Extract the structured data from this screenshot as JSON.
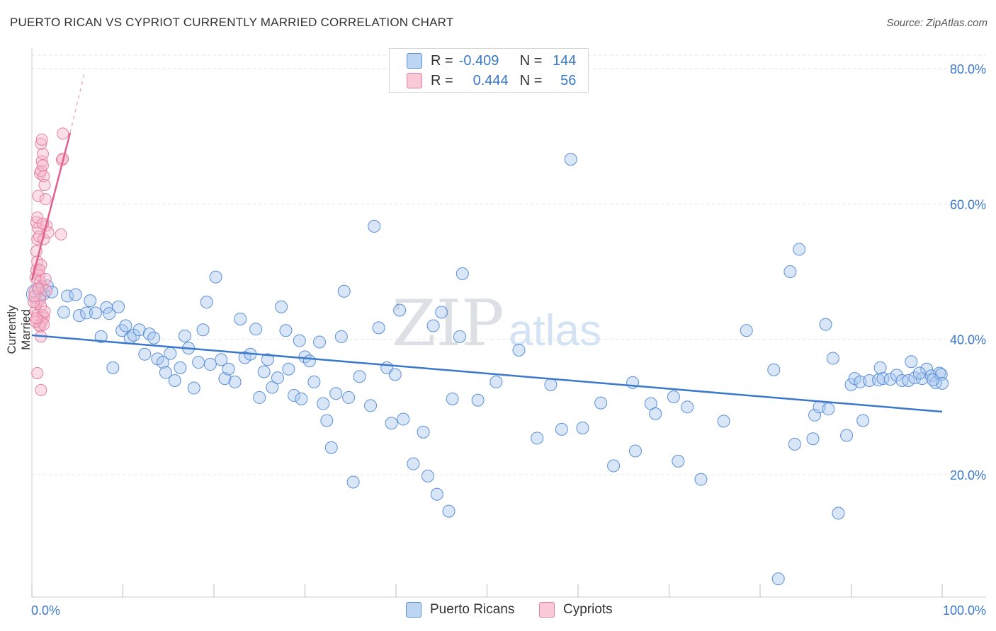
{
  "header": {
    "title": "PUERTO RICAN VS CYPRIOT CURRENTLY MARRIED CORRELATION CHART",
    "source": "Source: ZipAtlas.com"
  },
  "watermark": {
    "zip": "ZIP",
    "atlas": "atlas"
  },
  "legend": {
    "rows": [
      {
        "r_label": "R =",
        "r_value": "-0.409",
        "n_label": "N =",
        "n_value": "144",
        "color": "#a8c8f0",
        "border": "#5b8fd6"
      },
      {
        "r_label": "R =",
        "r_value": "0.444",
        "n_label": "N =",
        "n_value": "56",
        "color": "#f7b9cc",
        "border": "#e57fa0"
      }
    ]
  },
  "bottom_legend": [
    {
      "label": "Puerto Ricans",
      "color": "#a8c8f0",
      "border": "#5b8fd6"
    },
    {
      "label": "Cypriots",
      "color": "#f7b9cc",
      "border": "#e57fa0"
    }
  ],
  "chart_data": {
    "type": "scatter",
    "title": "PUERTO RICAN VS CYPRIOT CURRENTLY MARRIED CORRELATION CHART",
    "xlabel": "",
    "ylabel": "Currently Married",
    "xlim": [
      0,
      100
    ],
    "ylim": [
      0,
      85
    ],
    "x_tick_labels": [
      "0.0%",
      "100.0%"
    ],
    "y_ticks": [
      20,
      40,
      60,
      80
    ],
    "y_tick_labels": [
      "20.0%",
      "40.0%",
      "60.0%",
      "80.0%"
    ],
    "grid": true,
    "colors": {
      "blue": "#3a78c9",
      "pink": "#e0608a",
      "blue_fill": "#a8c8f0",
      "pink_fill": "#f7b9cc"
    },
    "series": [
      {
        "name": "Puerto Ricans",
        "trend": {
          "x": [
            0,
            100
          ],
          "y": [
            40.6,
            29.3
          ]
        },
        "points": [
          [
            0.8,
            47.2
          ],
          [
            1.3,
            46.7
          ],
          [
            1.7,
            47.9
          ],
          [
            2.2,
            47.0
          ],
          [
            3.5,
            44.0
          ],
          [
            3.9,
            46.4
          ],
          [
            4.8,
            46.6
          ],
          [
            5.2,
            43.5
          ],
          [
            6.0,
            43.9
          ],
          [
            6.4,
            45.7
          ],
          [
            7.0,
            43.9
          ],
          [
            7.6,
            40.4
          ],
          [
            8.2,
            44.7
          ],
          [
            8.5,
            43.8
          ],
          [
            8.9,
            35.8
          ],
          [
            9.5,
            44.8
          ],
          [
            9.9,
            41.3
          ],
          [
            10.3,
            42.0
          ],
          [
            10.8,
            40.2
          ],
          [
            11.2,
            40.6
          ],
          [
            11.8,
            41.4
          ],
          [
            12.4,
            37.8
          ],
          [
            12.9,
            40.8
          ],
          [
            13.4,
            40.2
          ],
          [
            13.8,
            37.1
          ],
          [
            14.4,
            36.6
          ],
          [
            14.7,
            35.1
          ],
          [
            15.2,
            37.9
          ],
          [
            15.7,
            33.9
          ],
          [
            16.3,
            35.8
          ],
          [
            16.8,
            40.5
          ],
          [
            17.2,
            38.7
          ],
          [
            17.8,
            32.8
          ],
          [
            18.3,
            36.6
          ],
          [
            18.8,
            41.4
          ],
          [
            19.2,
            45.5
          ],
          [
            19.6,
            36.3
          ],
          [
            20.2,
            49.2
          ],
          [
            20.8,
            37.0
          ],
          [
            21.2,
            34.2
          ],
          [
            21.6,
            35.6
          ],
          [
            22.3,
            33.7
          ],
          [
            22.9,
            43.0
          ],
          [
            23.4,
            37.3
          ],
          [
            24.0,
            37.8
          ],
          [
            24.6,
            41.5
          ],
          [
            25.0,
            31.4
          ],
          [
            25.5,
            35.2
          ],
          [
            25.9,
            37.0
          ],
          [
            26.4,
            32.9
          ],
          [
            27.0,
            34.3
          ],
          [
            27.4,
            44.8
          ],
          [
            27.9,
            41.3
          ],
          [
            28.2,
            35.6
          ],
          [
            28.8,
            31.7
          ],
          [
            29.4,
            39.8
          ],
          [
            29.6,
            31.2
          ],
          [
            30.0,
            37.4
          ],
          [
            30.5,
            36.8
          ],
          [
            31.0,
            33.7
          ],
          [
            31.6,
            39.6
          ],
          [
            32.0,
            30.5
          ],
          [
            32.4,
            28.0
          ],
          [
            32.9,
            24.0
          ],
          [
            33.4,
            32.0
          ],
          [
            34.0,
            40.4
          ],
          [
            34.3,
            47.1
          ],
          [
            34.8,
            31.4
          ],
          [
            35.3,
            18.9
          ],
          [
            36.0,
            34.5
          ],
          [
            37.2,
            30.2
          ],
          [
            37.6,
            56.7
          ],
          [
            38.1,
            41.7
          ],
          [
            39.0,
            35.8
          ],
          [
            39.5,
            27.6
          ],
          [
            39.9,
            34.8
          ],
          [
            40.4,
            44.3
          ],
          [
            40.8,
            28.2
          ],
          [
            41.9,
            21.6
          ],
          [
            43.0,
            26.3
          ],
          [
            43.5,
            19.8
          ],
          [
            44.1,
            42.0
          ],
          [
            44.5,
            17.1
          ],
          [
            45.0,
            44.0
          ],
          [
            45.8,
            14.6
          ],
          [
            46.2,
            31.2
          ],
          [
            47.0,
            40.4
          ],
          [
            47.3,
            49.7
          ],
          [
            49.0,
            31.0
          ],
          [
            51.0,
            33.7
          ],
          [
            53.5,
            38.4
          ],
          [
            55.5,
            25.4
          ],
          [
            57.0,
            33.3
          ],
          [
            58.2,
            26.7
          ],
          [
            59.2,
            66.6
          ],
          [
            60.5,
            26.9
          ],
          [
            62.5,
            30.6
          ],
          [
            63.9,
            21.3
          ],
          [
            66.0,
            33.6
          ],
          [
            66.3,
            23.5
          ],
          [
            68.0,
            30.5
          ],
          [
            68.5,
            29.0
          ],
          [
            70.5,
            31.5
          ],
          [
            71.0,
            22.0
          ],
          [
            72.0,
            30.0
          ],
          [
            73.5,
            19.3
          ],
          [
            76.0,
            27.9
          ],
          [
            78.5,
            41.3
          ],
          [
            81.5,
            35.5
          ],
          [
            82.0,
            4.6
          ],
          [
            83.3,
            50.0
          ],
          [
            83.8,
            24.5
          ],
          [
            84.3,
            53.3
          ],
          [
            85.8,
            25.3
          ],
          [
            86.0,
            28.8
          ],
          [
            86.5,
            30.0
          ],
          [
            87.2,
            42.2
          ],
          [
            87.5,
            29.7
          ],
          [
            88.0,
            37.2
          ],
          [
            88.6,
            14.3
          ],
          [
            89.5,
            25.8
          ],
          [
            90.0,
            33.3
          ],
          [
            90.4,
            34.2
          ],
          [
            91.0,
            33.7
          ],
          [
            91.3,
            28.0
          ],
          [
            92.0,
            33.9
          ],
          [
            93.0,
            34.0
          ],
          [
            93.2,
            35.8
          ],
          [
            93.5,
            34.2
          ],
          [
            94.3,
            34.1
          ],
          [
            95.0,
            34.7
          ],
          [
            95.6,
            33.9
          ],
          [
            96.3,
            33.9
          ],
          [
            96.6,
            36.7
          ],
          [
            97.0,
            34.3
          ],
          [
            97.8,
            34.2
          ],
          [
            98.3,
            35.6
          ],
          [
            98.8,
            34.6
          ],
          [
            99.3,
            33.6
          ],
          [
            99.7,
            35.0
          ],
          [
            99.9,
            34.8
          ],
          [
            100.0,
            33.5
          ],
          [
            99.0,
            34.0
          ],
          [
            97.5,
            35.0
          ]
        ]
      },
      {
        "name": "Cypriots",
        "trend": {
          "x": [
            0,
            4.2
          ],
          "y": [
            48.7,
            70.5
          ]
        },
        "trend_dashed": {
          "x": [
            4.2,
            5.8
          ],
          "y": [
            70.5,
            79.5
          ]
        },
        "points": [
          [
            0.3,
            47.0
          ],
          [
            0.4,
            44.2
          ],
          [
            0.5,
            45.4
          ],
          [
            0.6,
            43.6
          ],
          [
            0.4,
            49.1
          ],
          [
            0.5,
            50.2
          ],
          [
            0.6,
            51.5
          ],
          [
            0.5,
            53.0
          ],
          [
            0.6,
            54.8
          ],
          [
            0.7,
            56.4
          ],
          [
            0.5,
            57.3
          ],
          [
            0.6,
            58.0
          ],
          [
            0.8,
            55.2
          ],
          [
            0.7,
            61.2
          ],
          [
            0.9,
            64.5
          ],
          [
            1.0,
            64.9
          ],
          [
            1.1,
            66.3
          ],
          [
            1.2,
            67.4
          ],
          [
            1.0,
            68.9
          ],
          [
            1.1,
            69.5
          ],
          [
            1.2,
            65.7
          ],
          [
            1.3,
            64.1
          ],
          [
            1.4,
            62.8
          ],
          [
            1.5,
            60.7
          ],
          [
            1.6,
            56.8
          ],
          [
            1.3,
            54.8
          ],
          [
            1.0,
            51.0
          ],
          [
            0.8,
            49.5
          ],
          [
            0.9,
            48.5
          ],
          [
            1.1,
            47.8
          ],
          [
            0.9,
            45.9
          ],
          [
            1.0,
            44.9
          ],
          [
            1.2,
            43.6
          ],
          [
            1.3,
            43.2
          ],
          [
            1.1,
            42.6
          ],
          [
            0.8,
            42.1
          ],
          [
            0.9,
            41.9
          ],
          [
            1.0,
            40.4
          ],
          [
            0.6,
            35.0
          ],
          [
            1.0,
            32.5
          ],
          [
            1.3,
            42.2
          ],
          [
            1.4,
            44.1
          ],
          [
            1.6,
            47.2
          ],
          [
            1.8,
            55.8
          ],
          [
            3.2,
            55.5
          ],
          [
            3.3,
            66.5
          ],
          [
            3.4,
            66.7
          ],
          [
            3.4,
            70.4
          ],
          [
            0.2,
            45.5
          ],
          [
            0.3,
            46.4
          ],
          [
            0.4,
            42.6
          ],
          [
            0.5,
            43.1
          ],
          [
            0.7,
            47.5
          ],
          [
            0.8,
            50.3
          ],
          [
            1.2,
            57.1
          ],
          [
            1.5,
            48.9
          ]
        ]
      }
    ]
  }
}
